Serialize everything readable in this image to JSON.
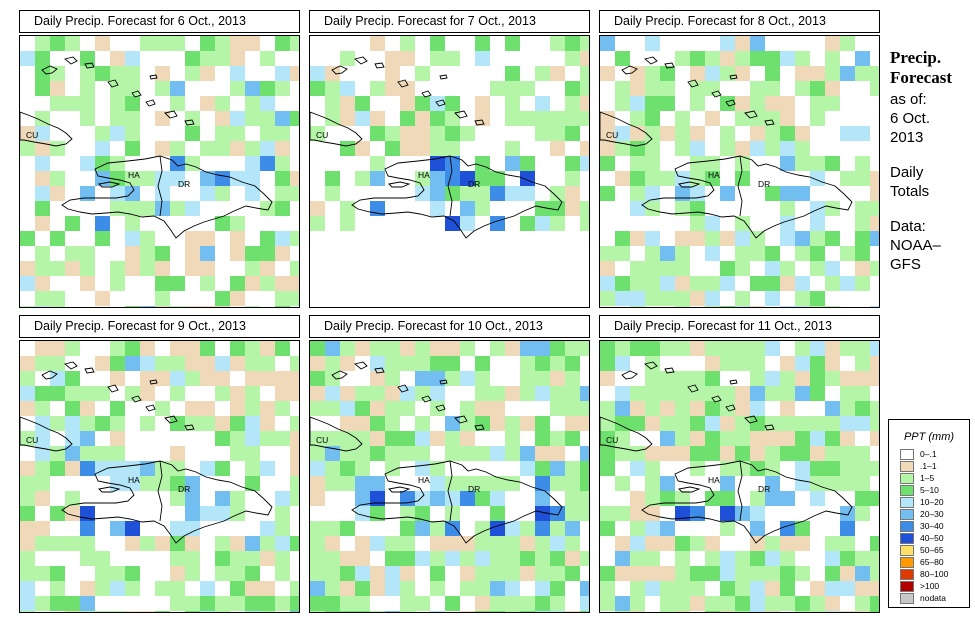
{
  "panels": [
    {
      "title": "Daily Precip. Forecast for  6 Oct., 2013",
      "seed": 11,
      "coverage": 0.62,
      "dry_east": false
    },
    {
      "title": "Daily Precip. Forecast for  7 Oct., 2013",
      "seed": 23,
      "coverage": 0.55,
      "dry_east": true
    },
    {
      "title": "Daily Precip. Forecast for  8 Oct., 2013",
      "seed": 37,
      "coverage": 0.64,
      "dry_east": false
    },
    {
      "title": "Daily Precip. Forecast for  9 Oct., 2013",
      "seed": 41,
      "coverage": 0.72,
      "dry_east": false
    },
    {
      "title": "Daily Precip. Forecast for  10 Oct., 2013",
      "seed": 53,
      "coverage": 0.82,
      "dry_east": false
    },
    {
      "title": "Daily Precip. Forecast for  11 Oct., 2013",
      "seed": 67,
      "coverage": 0.8,
      "dry_east": false
    }
  ],
  "map_labels": {
    "cuba": "CU",
    "haiti": "HA",
    "dominican_republic": "DR"
  },
  "side_info": {
    "title_line1": "Precip.",
    "title_line2": "Forecast",
    "asof": "as of:",
    "date1": "6 Oct.",
    "date2": "2013",
    "daily1": "Daily",
    "daily2": "Totals",
    "data1": "Data:",
    "data2": "NOAA–",
    "data3": "GFS"
  },
  "legend": {
    "title": "PPT (mm)",
    "items": [
      {
        "label": "0–.1",
        "color": "#ffffff"
      },
      {
        "label": ".1–1",
        "color": "#f0d9b8"
      },
      {
        "label": "1–5",
        "color": "#b5f5a8"
      },
      {
        "label": "5–10",
        "color": "#6ee06e"
      },
      {
        "label": "10–20",
        "color": "#b2e6f8"
      },
      {
        "label": "20–30",
        "color": "#72bef0"
      },
      {
        "label": "30–40",
        "color": "#3c8ce8"
      },
      {
        "label": "40–50",
        "color": "#1e50d8"
      },
      {
        "label": "50–65",
        "color": "#ffe066"
      },
      {
        "label": "65–80",
        "color": "#ff9a00"
      },
      {
        "label": "80–100",
        "color": "#e03a00"
      },
      {
        "label": ">100",
        "color": "#b00000"
      },
      {
        "label": "nodata",
        "color": "#c8c8c8"
      }
    ]
  }
}
